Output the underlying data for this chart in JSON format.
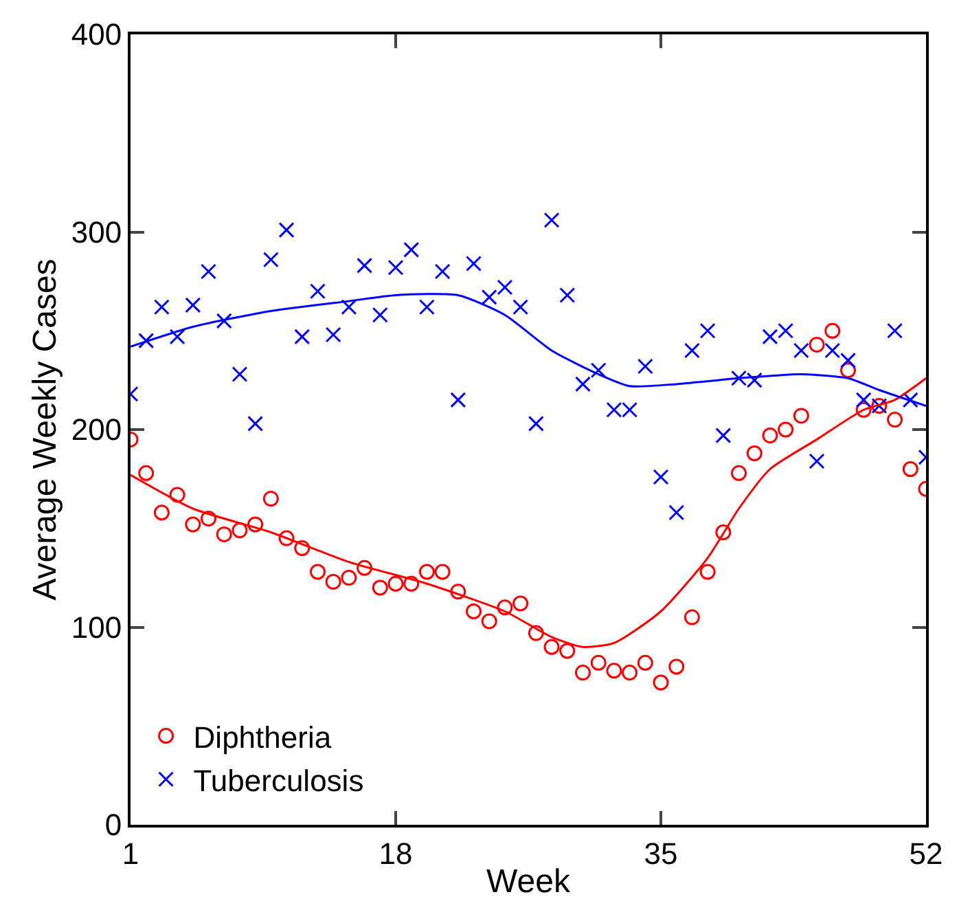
{
  "chart_data": {
    "type": "scatter",
    "xlabel": "Week",
    "ylabel": "Average Weekly Cases",
    "xlim": [
      1,
      52
    ],
    "xticks": [
      1,
      18,
      35,
      52
    ],
    "ylim": [
      0,
      400
    ],
    "yticks": [
      0,
      100,
      200,
      300,
      400
    ],
    "legend": "bottom left",
    "series": [
      {
        "name": "Diphtheria",
        "color": "#ff0000",
        "marker": "circle",
        "x": [
          1,
          2,
          3,
          4,
          5,
          6,
          7,
          8,
          9,
          10,
          11,
          12,
          13,
          14,
          15,
          16,
          17,
          18,
          19,
          20,
          21,
          22,
          23,
          24,
          25,
          26,
          27,
          28,
          29,
          30,
          31,
          32,
          33,
          34,
          35,
          36,
          37,
          38,
          39,
          40,
          41,
          42,
          43,
          44,
          45,
          46,
          47,
          48,
          49,
          50,
          51,
          52
        ],
        "values": [
          195,
          178,
          158,
          167,
          152,
          155,
          147,
          149,
          152,
          165,
          145,
          140,
          128,
          123,
          125,
          130,
          120,
          122,
          122,
          128,
          128,
          118,
          108,
          103,
          110,
          112,
          97,
          90,
          88,
          77,
          82,
          78,
          77,
          82,
          72,
          80,
          105,
          128,
          148,
          178,
          188,
          197,
          200,
          207,
          243,
          250,
          230,
          210,
          212,
          205,
          180,
          170
        ]
      },
      {
        "name": "Tuberculosis",
        "color": "#0000ff",
        "marker": "cross",
        "x": [
          1,
          2,
          3,
          4,
          5,
          6,
          7,
          8,
          9,
          10,
          11,
          12,
          13,
          14,
          15,
          16,
          17,
          18,
          19,
          20,
          21,
          22,
          23,
          24,
          25,
          26,
          27,
          28,
          29,
          30,
          31,
          32,
          33,
          34,
          35,
          36,
          37,
          38,
          39,
          40,
          41,
          42,
          43,
          44,
          45,
          46,
          47,
          48,
          49,
          50,
          51,
          52
        ],
        "values": [
          218,
          245,
          262,
          247,
          263,
          280,
          255,
          228,
          203,
          286,
          301,
          247,
          270,
          248,
          262,
          283,
          258,
          282,
          291,
          262,
          280,
          215,
          284,
          267,
          272,
          262,
          203,
          306,
          268,
          223,
          230,
          210,
          210,
          232,
          176,
          158,
          240,
          250,
          197,
          226,
          225,
          247,
          250,
          240,
          184,
          240,
          235,
          215,
          212,
          250,
          215,
          186
        ]
      },
      {
        "type": "line",
        "color": "#ff0000",
        "marker": "none",
        "x": [
          1,
          5,
          10,
          15,
          20,
          25,
          28,
          30,
          32,
          35,
          38,
          40,
          42,
          45,
          48,
          50,
          52
        ],
        "values": [
          177,
          160,
          148,
          133,
          122,
          108,
          95,
          90,
          92,
          108,
          135,
          160,
          180,
          195,
          210,
          215,
          226
        ]
      },
      {
        "type": "line",
        "color": "#0000ff",
        "marker": "none",
        "x": [
          1,
          5,
          10,
          15,
          18,
          22,
          25,
          28,
          31,
          33,
          36,
          40,
          44,
          47,
          49,
          52
        ],
        "values": [
          242,
          252,
          260,
          265,
          268,
          268,
          258,
          240,
          228,
          222,
          223,
          226,
          228,
          226,
          220,
          212
        ]
      }
    ]
  }
}
